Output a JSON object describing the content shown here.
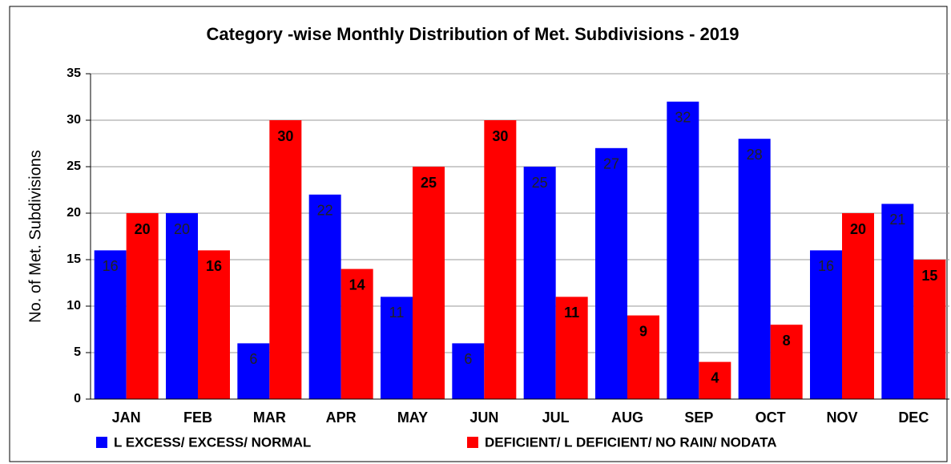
{
  "chart_data": {
    "type": "bar",
    "title": "Category -wise Monthly Distribution of Met. Subdivisions - 2019",
    "ylabel": "No. of Met. Subdivisions",
    "categories": [
      "JAN",
      "FEB",
      "MAR",
      "APR",
      "MAY",
      "JUN",
      "JUL",
      "AUG",
      "SEP",
      "OCT",
      "NOV",
      "DEC"
    ],
    "series": [
      {
        "name": "L EXCESS/ EXCESS/ NORMAL",
        "color": "#0000ff",
        "values": [
          16,
          20,
          6,
          22,
          11,
          6,
          25,
          27,
          32,
          28,
          16,
          21
        ]
      },
      {
        "name": "DEFICIENT/ L DEFICIENT/ NO RAIN/ NODATA",
        "color": "#ff0000",
        "values": [
          20,
          16,
          30,
          14,
          25,
          30,
          11,
          9,
          4,
          8,
          20,
          15
        ]
      }
    ],
    "ylim": [
      0,
      35
    ],
    "yticks": [
      0,
      5,
      10,
      15,
      20,
      25,
      30,
      35
    ],
    "grid": true,
    "legend": "bottom"
  }
}
